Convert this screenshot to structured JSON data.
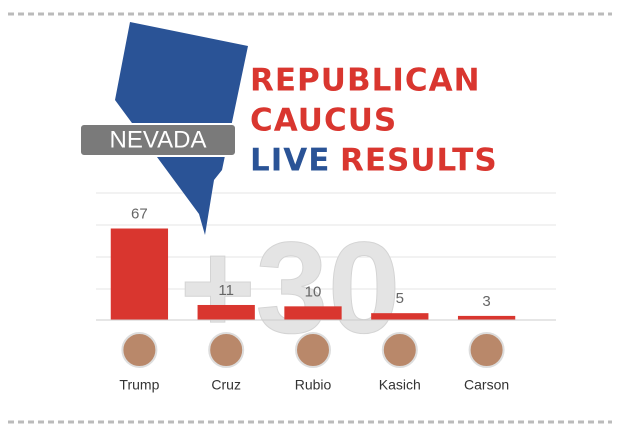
{
  "state_label": "NEVADA",
  "headline": [
    "REPUBLICAN",
    "CAUCUS",
    "LIVE",
    "RESULTS"
  ],
  "watermark": "+30",
  "chart_data": {
    "type": "bar",
    "categories": [
      "Trump",
      "Cruz",
      "Rubio",
      "Kasich",
      "Carson"
    ],
    "values": [
      67,
      11,
      10,
      5,
      3
    ],
    "color": "#d9362f",
    "ylim": [
      0,
      93
    ]
  }
}
